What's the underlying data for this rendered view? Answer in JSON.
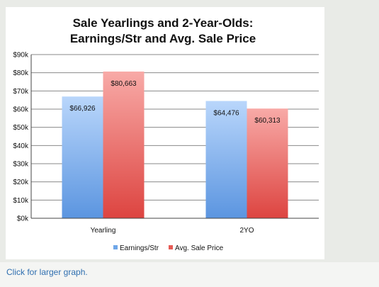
{
  "chart_data": {
    "type": "bar",
    "title_lines": [
      "Sale Yearlings and 2-Year-Olds:",
      "Earnings/Str and Avg. Sale Price"
    ],
    "categories": [
      "Yearling",
      "2YO"
    ],
    "series": [
      {
        "name": "Earnings/Str",
        "values": [
          66926,
          64476
        ],
        "labels": [
          "$66,926",
          "$64,476"
        ],
        "color": "#6fa6e8"
      },
      {
        "name": "Avg. Sale Price",
        "values": [
          80663,
          60313
        ],
        "labels": [
          "$80,663",
          "$60,313"
        ],
        "color": "#e65a55"
      }
    ],
    "ylim": [
      0,
      90000
    ],
    "y_ticks": [
      {
        "value": 0,
        "label": "$0k"
      },
      {
        "value": 10000,
        "label": "$10k"
      },
      {
        "value": 20000,
        "label": "$20k"
      },
      {
        "value": 30000,
        "label": "$30k"
      },
      {
        "value": 40000,
        "label": "$40k"
      },
      {
        "value": 50000,
        "label": "$50k"
      },
      {
        "value": 60000,
        "label": "$60k"
      },
      {
        "value": 70000,
        "label": "$70k"
      },
      {
        "value": 80000,
        "label": "$80k"
      },
      {
        "value": 90000,
        "label": "$90k"
      }
    ],
    "grid": true,
    "legend_position": "bottom",
    "xlabel": "",
    "ylabel": ""
  },
  "caption": {
    "link_text": "Click for larger graph."
  }
}
